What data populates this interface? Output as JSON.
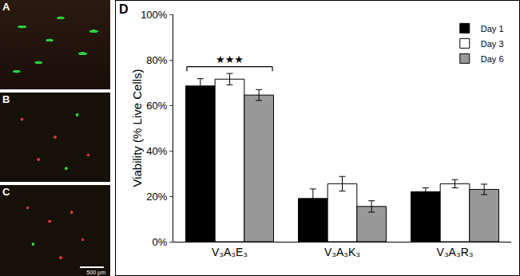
{
  "panels": [
    {
      "label": "A"
    },
    {
      "label": "B"
    },
    {
      "label": "C",
      "scale_bar": "500 μm"
    }
  ],
  "chart_data": {
    "panel_label": "D",
    "type": "bar",
    "y_label": "Viability (% Live Cells)",
    "categories": [
      "V₃A₃E₃",
      "V₃A₃K₃",
      "V₃A₃R₃"
    ],
    "series": [
      {
        "name": "Day 1",
        "color": "#000000",
        "values": [
          68.5,
          19,
          22
        ],
        "errors": [
          3.2,
          4.2,
          1.7
        ]
      },
      {
        "name": "Day 3",
        "color": "#ffffff",
        "values": [
          71.5,
          25.5,
          25.5
        ],
        "errors": [
          2.5,
          3.2,
          1.8
        ]
      },
      {
        "name": "Day 6",
        "color": "#999999",
        "values": [
          64.5,
          15.5,
          23
        ],
        "errors": [
          2.4,
          2.5,
          2.3
        ]
      }
    ],
    "ylim": [
      0,
      100
    ],
    "yticks": [
      {
        "value": 0,
        "label": "0%"
      },
      {
        "value": 20,
        "label": "20%"
      },
      {
        "value": 40,
        "label": "40%"
      },
      {
        "value": 60,
        "label": "60%"
      },
      {
        "value": 80,
        "label": "80%"
      },
      {
        "value": 100,
        "label": "100%"
      }
    ],
    "legend": "top-right",
    "annotations": [
      {
        "text": "★★★",
        "category": "V₃A₃E₃"
      }
    ]
  }
}
